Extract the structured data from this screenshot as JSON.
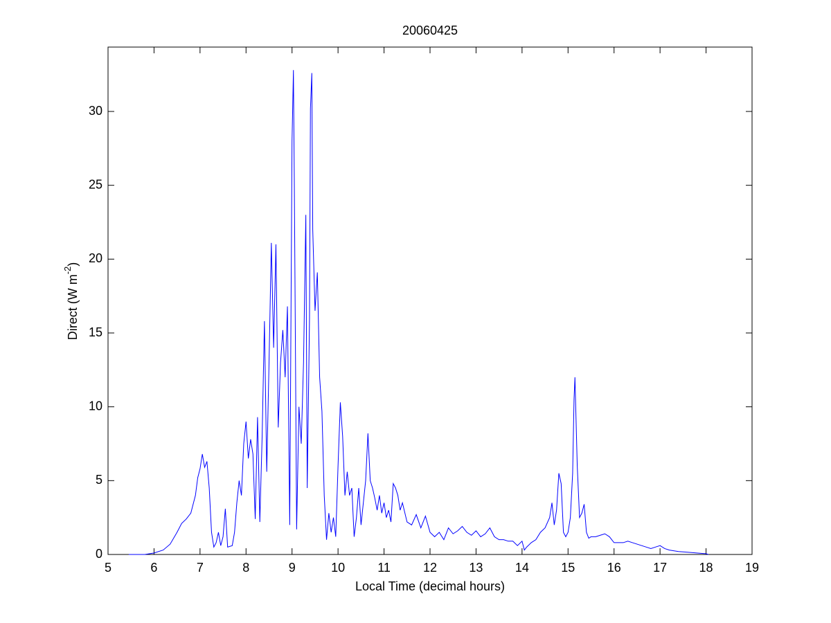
{
  "chart_data": {
    "type": "line",
    "title": "20060425",
    "x_label": "Local Time (decimal hours)",
    "y_label": [
      "Direct (W m",
      "-2",
      ")"
    ],
    "xlim": [
      5,
      19
    ],
    "xticks": [
      5,
      6,
      7,
      8,
      9,
      10,
      11,
      12,
      13,
      14,
      15,
      16,
      17,
      18,
      19
    ],
    "ylim": [
      0,
      34.36
    ],
    "yticks": [
      0,
      5,
      10,
      15,
      20,
      25,
      30
    ],
    "series": [
      {
        "color": "#0000ff",
        "x": [
          5.45,
          5.8,
          6.0,
          6.2,
          6.35,
          6.5,
          6.6,
          6.7,
          6.8,
          6.9,
          6.95,
          7.0,
          7.05,
          7.1,
          7.15,
          7.2,
          7.25,
          7.3,
          7.35,
          7.4,
          7.45,
          7.5,
          7.55,
          7.6,
          7.7,
          7.75,
          7.8,
          7.85,
          7.9,
          7.95,
          8.0,
          8.05,
          8.1,
          8.15,
          8.2,
          8.25,
          8.3,
          8.35,
          8.4,
          8.45,
          8.5,
          8.55,
          8.6,
          8.65,
          8.7,
          8.75,
          8.8,
          8.85,
          8.9,
          8.95,
          9.0,
          9.03,
          9.05,
          9.1,
          9.15,
          9.2,
          9.25,
          9.3,
          9.33,
          9.38,
          9.4,
          9.43,
          9.45,
          9.5,
          9.55,
          9.6,
          9.65,
          9.7,
          9.75,
          9.8,
          9.85,
          9.9,
          9.95,
          10.0,
          10.05,
          10.1,
          10.15,
          10.2,
          10.25,
          10.3,
          10.35,
          10.4,
          10.45,
          10.5,
          10.55,
          10.6,
          10.65,
          10.7,
          10.75,
          10.8,
          10.85,
          10.9,
          10.95,
          11.0,
          11.05,
          11.1,
          11.15,
          11.2,
          11.25,
          11.3,
          11.35,
          11.4,
          11.5,
          11.6,
          11.7,
          11.8,
          11.9,
          12.0,
          12.1,
          12.2,
          12.3,
          12.4,
          12.5,
          12.6,
          12.7,
          12.8,
          12.9,
          13.0,
          13.1,
          13.2,
          13.3,
          13.4,
          13.5,
          13.6,
          13.7,
          13.8,
          13.9,
          14.0,
          14.05,
          14.1,
          14.2,
          14.3,
          14.4,
          14.5,
          14.6,
          14.65,
          14.7,
          14.75,
          14.8,
          14.85,
          14.9,
          14.95,
          15.0,
          15.05,
          15.1,
          15.13,
          15.15,
          15.2,
          15.25,
          15.3,
          15.35,
          15.4,
          15.45,
          15.5,
          15.6,
          15.7,
          15.8,
          15.9,
          16.0,
          16.1,
          16.2,
          16.3,
          16.4,
          16.5,
          16.6,
          16.7,
          16.8,
          16.9,
          17.0,
          17.1,
          17.2,
          17.4,
          17.6,
          17.8,
          18.0,
          18.05
        ],
        "values": [
          0,
          0,
          0.1,
          0.3,
          0.7,
          1.5,
          2.1,
          2.4,
          2.8,
          4.0,
          5.2,
          5.8,
          6.8,
          5.9,
          6.3,
          4.5,
          1.5,
          0.5,
          0.8,
          1.5,
          0.6,
          1.2,
          3.1,
          0.5,
          0.6,
          1.5,
          3.5,
          5.0,
          4.0,
          7.5,
          9.0,
          6.5,
          7.8,
          6.8,
          2.4,
          9.3,
          2.2,
          8.0,
          15.8,
          5.6,
          13.0,
          21.1,
          14.0,
          21.0,
          8.6,
          13.0,
          15.2,
          12.0,
          16.8,
          2.0,
          28.0,
          32.8,
          25.0,
          1.7,
          10.0,
          7.5,
          13.0,
          23.0,
          4.5,
          16.0,
          30.2,
          32.6,
          22.0,
          16.5,
          19.1,
          12.0,
          9.7,
          4.0,
          1.0,
          2.8,
          1.5,
          2.5,
          1.2,
          6.0,
          10.3,
          8.0,
          4.0,
          5.6,
          4.0,
          4.5,
          1.2,
          2.5,
          4.5,
          2.0,
          3.5,
          5.0,
          8.2,
          5.0,
          4.5,
          3.8,
          3.0,
          4.0,
          2.8,
          3.5,
          2.5,
          3.0,
          2.2,
          4.8,
          4.5,
          4.0,
          3.0,
          3.5,
          2.2,
          2.0,
          2.7,
          1.8,
          2.6,
          1.5,
          1.2,
          1.5,
          1.0,
          1.8,
          1.4,
          1.6,
          1.9,
          1.5,
          1.3,
          1.6,
          1.2,
          1.4,
          1.8,
          1.2,
          1.0,
          1.0,
          0.9,
          0.9,
          0.6,
          0.9,
          0.3,
          0.5,
          0.8,
          1.0,
          1.5,
          1.8,
          2.5,
          3.5,
          2.0,
          3.0,
          5.5,
          4.8,
          1.5,
          1.2,
          1.5,
          2.5,
          5.5,
          10.5,
          12.0,
          6.0,
          2.5,
          2.8,
          3.4,
          1.5,
          1.1,
          1.2,
          1.2,
          1.3,
          1.4,
          1.2,
          0.8,
          0.8,
          0.8,
          0.9,
          0.8,
          0.7,
          0.6,
          0.5,
          0.4,
          0.5,
          0.6,
          0.4,
          0.3,
          0.2,
          0.15,
          0.1,
          0.05,
          0
        ]
      }
    ]
  }
}
